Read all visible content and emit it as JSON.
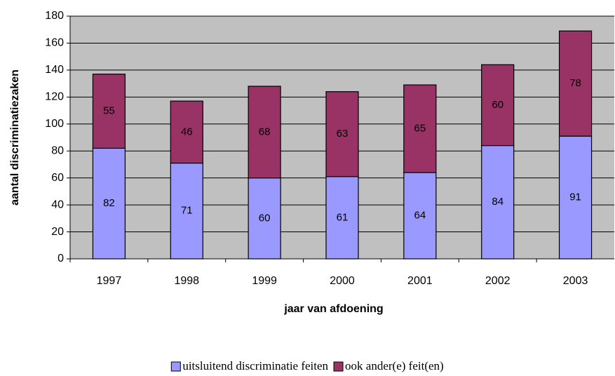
{
  "chart_data": {
    "type": "stacked_bar",
    "x_label": "jaar van afdoening",
    "y_label": "aantal discriminatiezaken",
    "categories": [
      "1997",
      "1998",
      "1999",
      "2000",
      "2001",
      "2002",
      "2003"
    ],
    "series": [
      {
        "name": "uitsluitend discriminatie feiten",
        "color": "#9999ff",
        "values": [
          82,
          71,
          60,
          61,
          64,
          84,
          91
        ]
      },
      {
        "name": "ook ander(e) feit(en)",
        "color": "#993366",
        "values": [
          55,
          46,
          68,
          63,
          65,
          60,
          78
        ]
      }
    ],
    "ylim": [
      0,
      180
    ],
    "yticks": [
      0,
      20,
      40,
      60,
      80,
      100,
      120,
      140,
      160,
      180
    ],
    "grid": true,
    "plot_background": "#c0c0c0",
    "legend": "bottom"
  }
}
